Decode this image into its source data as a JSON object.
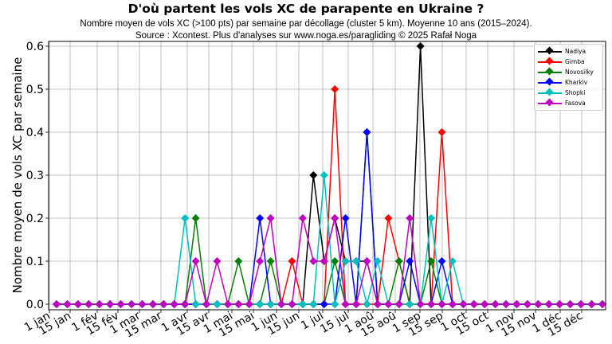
{
  "header": {
    "title": "D'où partent les vols XC de parapente en Ukraine ?",
    "subtitle_line1": "Nombre moyen de vols XC (>100 pts) par semaine par décollage (cluster 5 km). Moyenne 10 ans (2015–2024).",
    "subtitle_line2": "Source : Xcontest. Plus d'analyses sur www.noga.es/paragliding © 2025 Rafał Noga"
  },
  "chart_data": {
    "type": "line",
    "title": "D'où partent les vols XC de parapente en Ukraine ?",
    "subtitle": "Nombre moyen de vols XC (>100 pts) par semaine par décollage (cluster 5 km). Moyenne 10 ans (2015–2024). Source : Xcontest. Plus d'analyses sur www.noga.es/paragliding © 2025 Rafał Noga",
    "xlabel": "",
    "ylabel": "Nombre moyen de vols XC par semaine",
    "ylim": [
      -0.015,
      0.61
    ],
    "yticks": [
      0.0,
      0.1,
      0.2,
      0.3,
      0.4,
      0.5,
      0.6
    ],
    "ytick_labels": [
      "0.0",
      "0.1",
      "0.2",
      "0.3",
      "0.4",
      "0.5",
      "0.6"
    ],
    "xtick_labels": [
      "1 jan",
      "15 jan",
      "1 fév",
      "15 fév",
      "1 mar",
      "15 mar",
      "1 avr",
      "15 avr",
      "1 mai",
      "15 mai",
      "1 jun",
      "15 jun",
      "1 jul",
      "15 jul",
      "1 aoû",
      "15 aoû",
      "1 sep",
      "15 sep",
      "1 oct",
      "15 oct",
      "1 nov",
      "15 nov",
      "1 déc",
      "15 déc"
    ],
    "x": "week index 0..51 (weekly points through the year)",
    "grid": true,
    "legend_position": "upper right",
    "marker": "diamond",
    "series": [
      {
        "name": "Nadiya",
        "color": "#000000",
        "values": [
          0,
          0,
          0,
          0,
          0,
          0,
          0,
          0,
          0,
          0,
          0,
          0,
          0,
          0,
          0,
          0,
          0,
          0,
          0,
          0,
          0,
          0,
          0,
          0,
          0.3,
          0.1,
          0.2,
          0.1,
          0.1,
          0.1,
          0,
          0,
          0,
          0,
          0.6,
          0,
          0,
          0,
          0,
          0,
          0,
          0,
          0,
          0,
          0,
          0,
          0,
          0,
          0,
          0,
          0,
          0
        ]
      },
      {
        "name": "Gimba",
        "color": "#ff0000",
        "values": [
          0,
          0,
          0,
          0,
          0,
          0,
          0,
          0,
          0,
          0,
          0,
          0,
          0,
          0,
          0,
          0,
          0,
          0,
          0,
          0,
          0,
          0,
          0.1,
          0,
          0,
          0,
          0.5,
          0,
          0,
          0,
          0,
          0.2,
          0.1,
          0,
          0,
          0,
          0.4,
          0,
          0,
          0,
          0,
          0,
          0,
          0,
          0,
          0,
          0,
          0,
          0,
          0,
          0,
          0
        ]
      },
      {
        "name": "Novosilky",
        "color": "#008000",
        "values": [
          0,
          0,
          0,
          0,
          0,
          0,
          0,
          0,
          0,
          0,
          0,
          0,
          0,
          0.2,
          0,
          0,
          0,
          0.1,
          0,
          0,
          0.1,
          0,
          0,
          0,
          0,
          0,
          0.1,
          0,
          0,
          0.4,
          0,
          0,
          0.1,
          0,
          0,
          0.1,
          0,
          0,
          0,
          0,
          0,
          0,
          0,
          0,
          0,
          0,
          0,
          0,
          0,
          0,
          0,
          0
        ]
      },
      {
        "name": "Kharkiv",
        "color": "#0000ff",
        "values": [
          0,
          0,
          0,
          0,
          0,
          0,
          0,
          0,
          0,
          0,
          0,
          0,
          0,
          0,
          0,
          0,
          0,
          0,
          0,
          0.2,
          0,
          0,
          0,
          0,
          0,
          0,
          0,
          0.2,
          0,
          0.4,
          0,
          0,
          0,
          0.1,
          0,
          0,
          0.1,
          0,
          0,
          0,
          0,
          0,
          0,
          0,
          0,
          0,
          0,
          0,
          0,
          0,
          0,
          0
        ]
      },
      {
        "name": "Shopki",
        "color": "#00bfbf",
        "values": [
          0,
          0,
          0,
          0,
          0,
          0,
          0,
          0,
          0,
          0,
          0,
          0,
          0.2,
          0,
          0,
          0,
          0,
          0,
          0,
          0,
          0,
          0,
          0,
          0,
          0,
          0.3,
          0,
          0.1,
          0.1,
          0,
          0.1,
          0,
          0,
          0,
          0,
          0.2,
          0,
          0.1,
          0,
          0,
          0,
          0,
          0,
          0,
          0,
          0,
          0,
          0,
          0,
          0,
          0,
          0
        ]
      },
      {
        "name": "Fasova",
        "color": "#bf00bf",
        "values": [
          0,
          0,
          0,
          0,
          0,
          0,
          0,
          0,
          0,
          0,
          0,
          0,
          0,
          0.1,
          0,
          0.1,
          0,
          0,
          0,
          0.1,
          0.2,
          0,
          0,
          0.2,
          0.1,
          0.1,
          0.2,
          0,
          0,
          0.1,
          0,
          0,
          0,
          0.2,
          0,
          0,
          0,
          0,
          0,
          0,
          0,
          0,
          0,
          0,
          0,
          0,
          0,
          0,
          0,
          0,
          0,
          0
        ]
      }
    ]
  },
  "legend": {
    "items": [
      {
        "label": "Nadiya",
        "color": "#000000"
      },
      {
        "label": "Gimba",
        "color": "#ff0000"
      },
      {
        "label": "Novosilky",
        "color": "#008000"
      },
      {
        "label": "Kharkiv",
        "color": "#0000ff"
      },
      {
        "label": "Shopki",
        "color": "#00bfbf"
      },
      {
        "label": "Fasova",
        "color": "#bf00bf"
      }
    ]
  }
}
